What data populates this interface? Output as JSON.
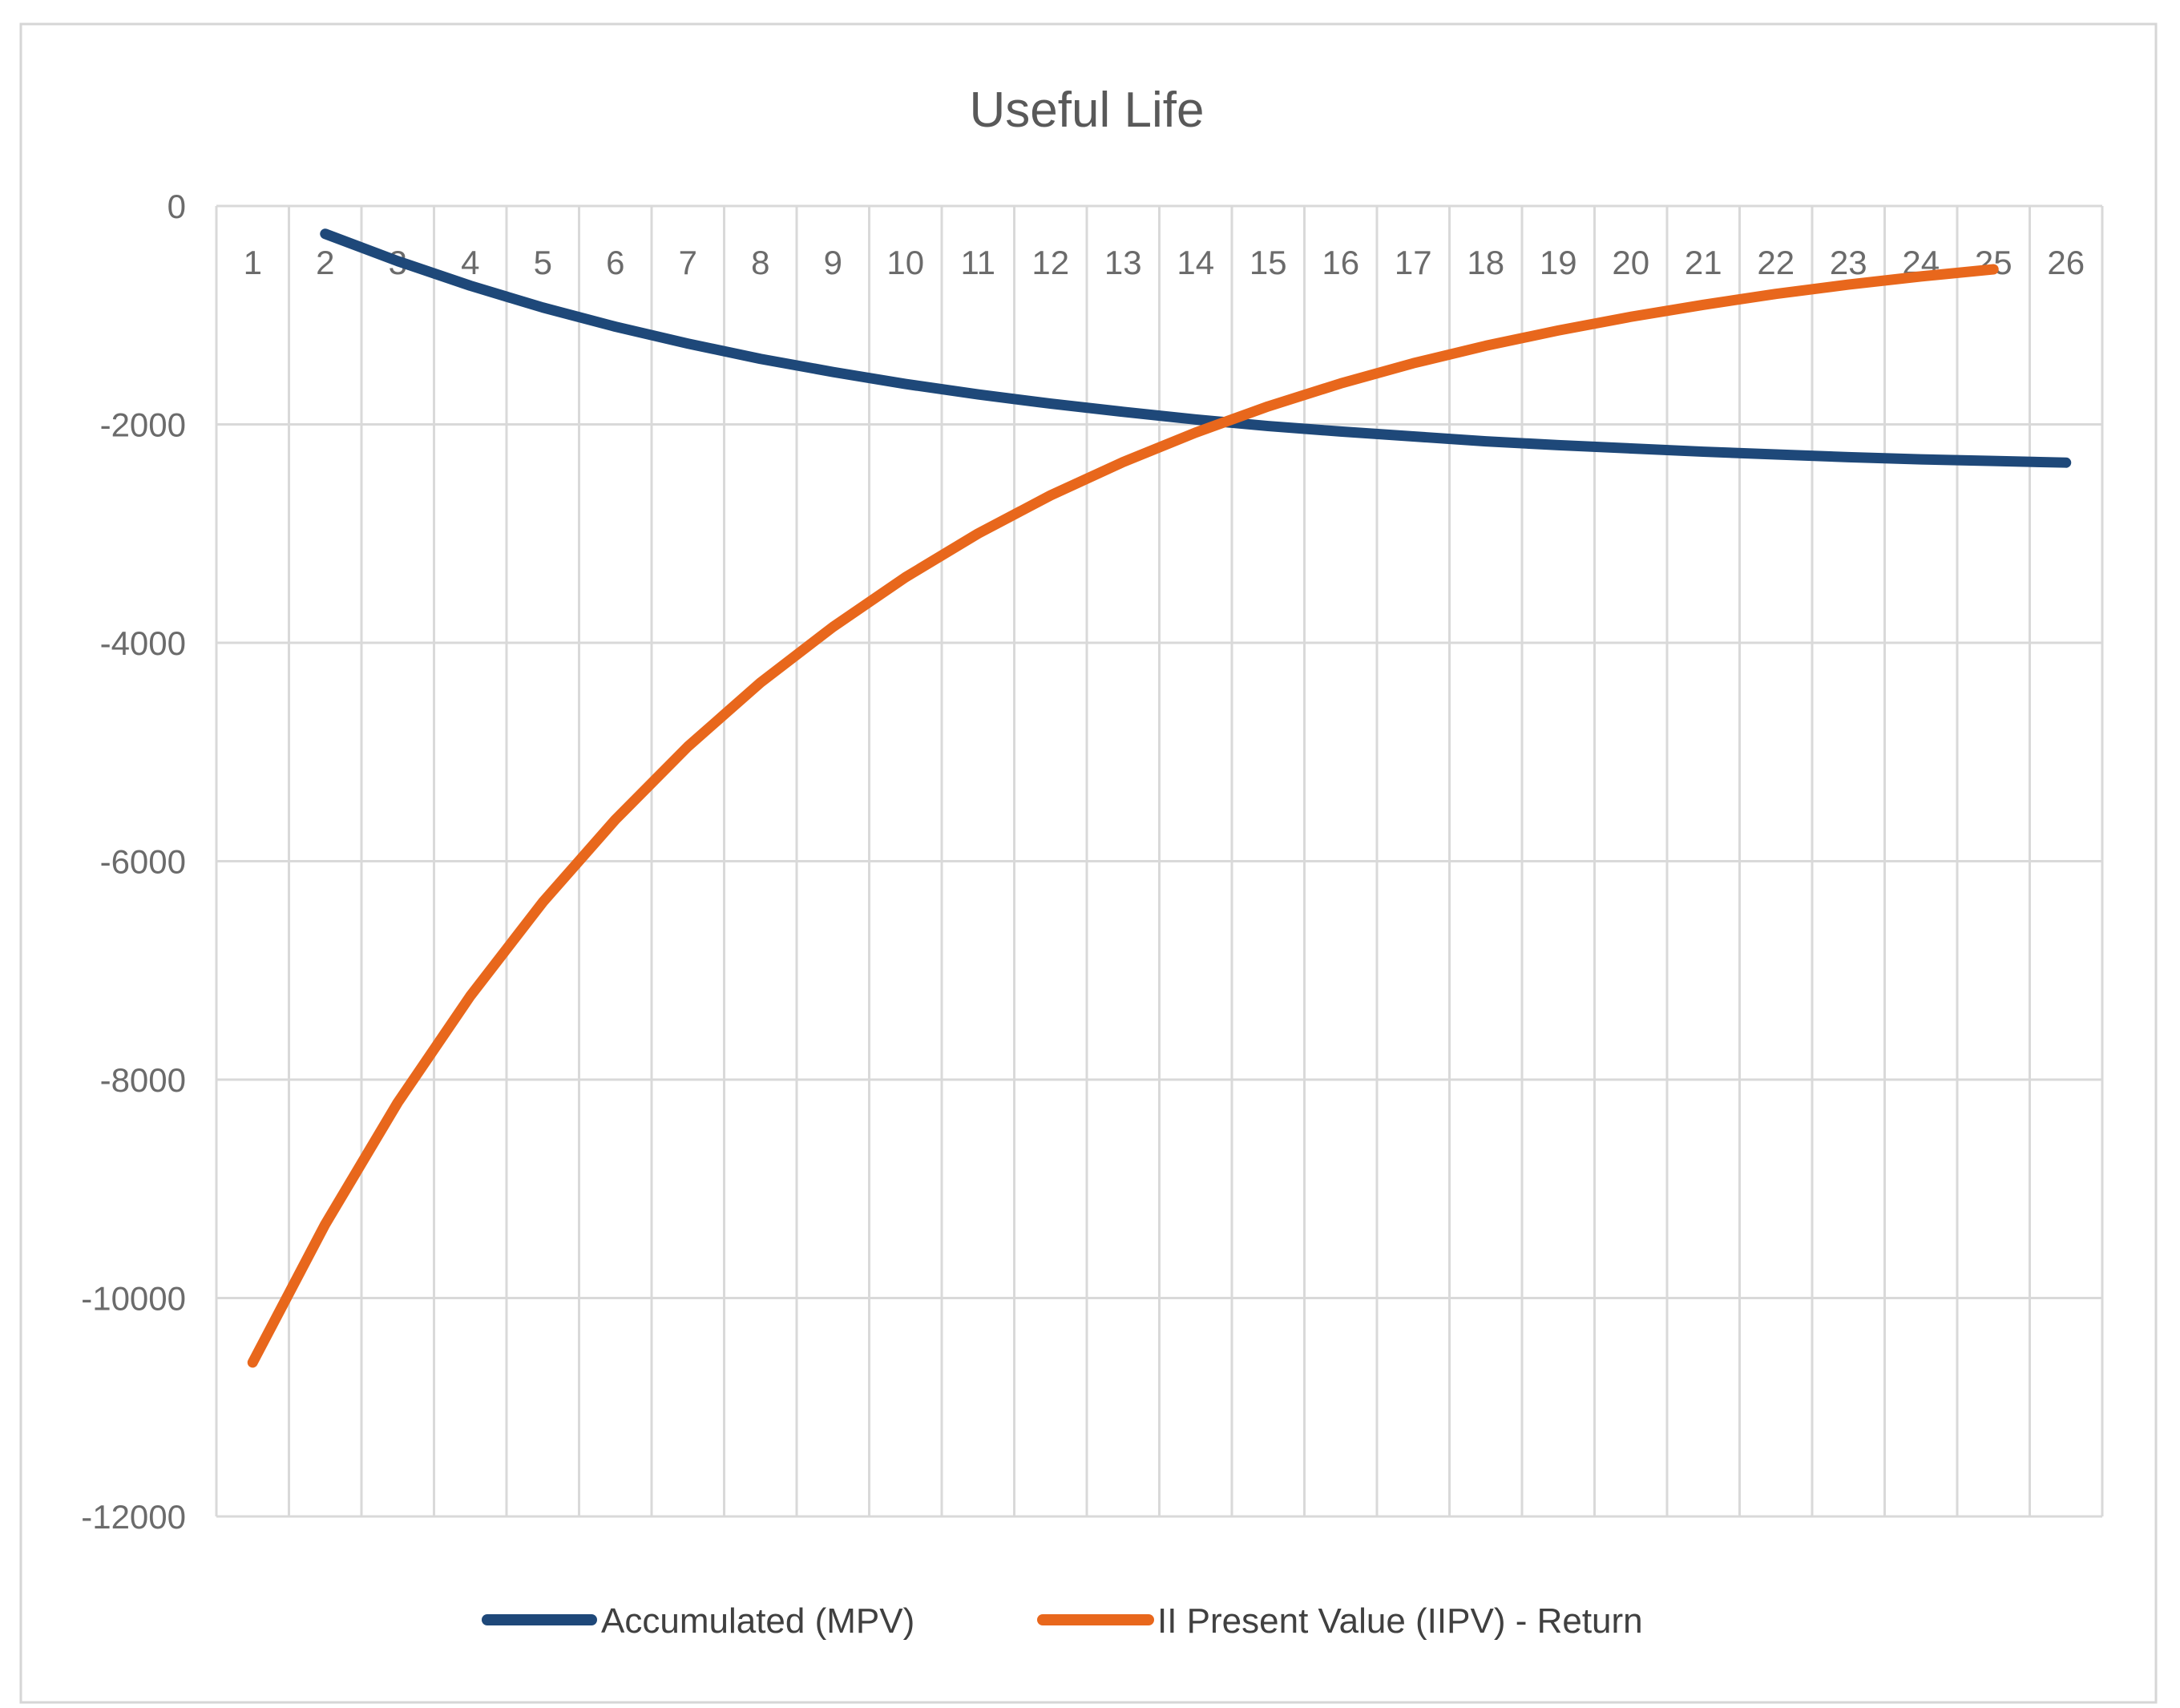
{
  "title": "Useful Life",
  "colors": {
    "accumulated_series": "#1E4879",
    "iipv_series": "#E8671C",
    "gridline": "#D9D9D9",
    "plot_border": "#D0D0D0",
    "card_border": "#D6D6D6",
    "title_text": "#595959",
    "tick_text": "#6B6B6B",
    "legend_text": "#404040",
    "background": "#FFFFFF"
  },
  "x_axis": {
    "tick_labels": [
      "1",
      "2",
      "3",
      "4",
      "5",
      "6",
      "7",
      "8",
      "9",
      "10",
      "11",
      "12",
      "13",
      "14",
      "15",
      "16",
      "17",
      "18",
      "19",
      "20",
      "21",
      "22",
      "23",
      "24",
      "25",
      "26"
    ]
  },
  "y_axis": {
    "tick_labels": [
      "0",
      "-2000",
      "-4000",
      "-6000",
      "-8000",
      "-10000",
      "-12000"
    ],
    "tick_values": [
      0,
      -2000,
      -4000,
      -6000,
      -8000,
      -10000,
      -12000
    ]
  },
  "legend": {
    "items": [
      {
        "label": "Accumulated (MPV)"
      },
      {
        "label": "II Present Value (IIPV) - Return"
      }
    ]
  },
  "chart_data": {
    "type": "line",
    "title": "Useful Life",
    "categories": [
      1,
      2,
      3,
      4,
      5,
      6,
      7,
      8,
      9,
      10,
      11,
      12,
      13,
      14,
      15,
      16,
      17,
      18,
      19,
      20,
      21,
      22,
      23,
      24,
      25,
      26
    ],
    "series": [
      {
        "name": "Accumulated (MPV)",
        "color": "#1E4879",
        "values": [
          null,
          -255,
          -505,
          -730,
          -930,
          -1105,
          -1260,
          -1400,
          -1520,
          -1630,
          -1725,
          -1810,
          -1885,
          -1955,
          -2015,
          -2065,
          -2110,
          -2155,
          -2190,
          -2220,
          -2250,
          -2275,
          -2300,
          -2320,
          -2335,
          -2350
        ]
      },
      {
        "name": "II Present Value (IIPV) - Return",
        "color": "#E8671C",
        "values": [
          -10590,
          -9325,
          -8210,
          -7235,
          -6375,
          -5620,
          -4950,
          -4365,
          -3855,
          -3400,
          -3000,
          -2650,
          -2345,
          -2075,
          -1835,
          -1625,
          -1440,
          -1280,
          -1140,
          -1015,
          -905,
          -805,
          -720,
          -645,
          -580,
          null
        ]
      }
    ],
    "ylim": [
      -12000,
      0
    ],
    "xlabel": "",
    "ylabel": "",
    "grid": true,
    "legend_position": "bottom"
  }
}
